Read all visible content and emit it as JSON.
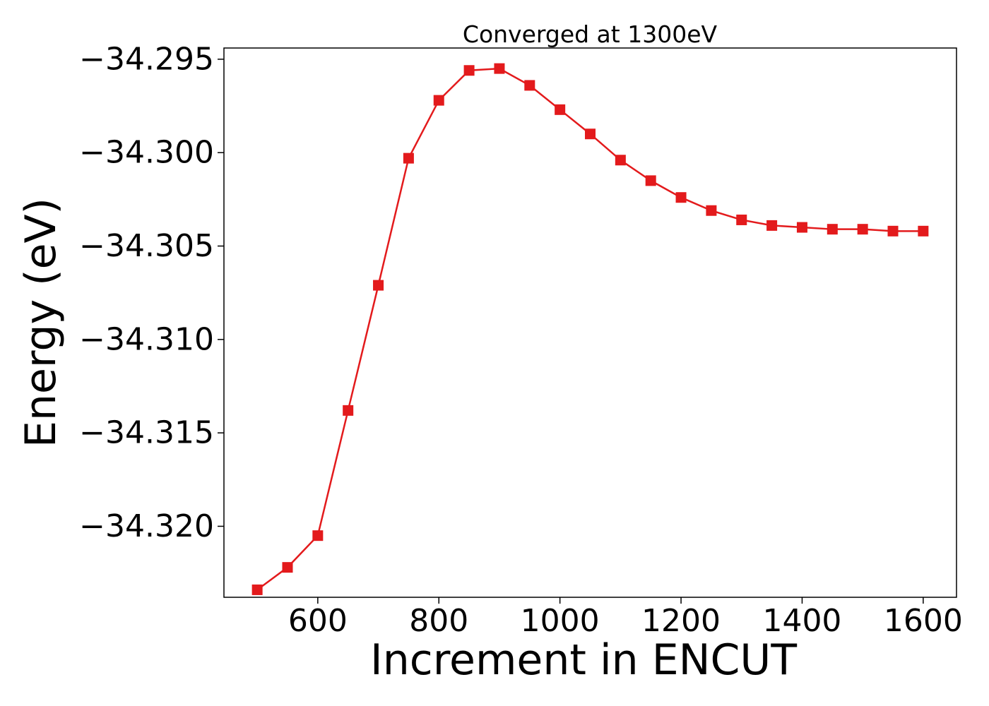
{
  "chart_data": {
    "type": "line",
    "title": "Converged at 1300eV",
    "xlabel": "Increment in ENCUT",
    "ylabel": "Energy (eV)",
    "x": [
      500,
      550,
      600,
      650,
      700,
      750,
      800,
      850,
      900,
      950,
      1000,
      1050,
      1100,
      1150,
      1200,
      1250,
      1300,
      1350,
      1400,
      1450,
      1500,
      1550,
      1600
    ],
    "series": [
      {
        "values": [
          -34.3234,
          -34.3222,
          -34.3205,
          -34.3138,
          -34.3071,
          -34.3003,
          -34.2972,
          -34.2956,
          -34.2955,
          -34.2964,
          -34.2977,
          -34.299,
          -34.3004,
          -34.3015,
          -34.3024,
          -34.3031,
          -34.3036,
          -34.3039,
          -34.304,
          -34.3041,
          -34.3041,
          -34.3042,
          -34.3042
        ],
        "color": "#e31a1c",
        "marker": "square"
      }
    ],
    "xticks": [
      600,
      800,
      1000,
      1200,
      1400,
      1600
    ],
    "xtick_labels": [
      "600",
      "800",
      "1000",
      "1200",
      "1400",
      "1600"
    ],
    "yticks": [
      -34.295,
      -34.3,
      -34.305,
      -34.31,
      -34.315,
      -34.32
    ],
    "ytick_labels": [
      "−34.295",
      "−34.300",
      "−34.305",
      "−34.310",
      "−34.315",
      "−34.320"
    ],
    "xlim": [
      445,
      1655
    ],
    "ylim": [
      -34.3238,
      -34.2944
    ],
    "grid": false,
    "legend": "none"
  }
}
